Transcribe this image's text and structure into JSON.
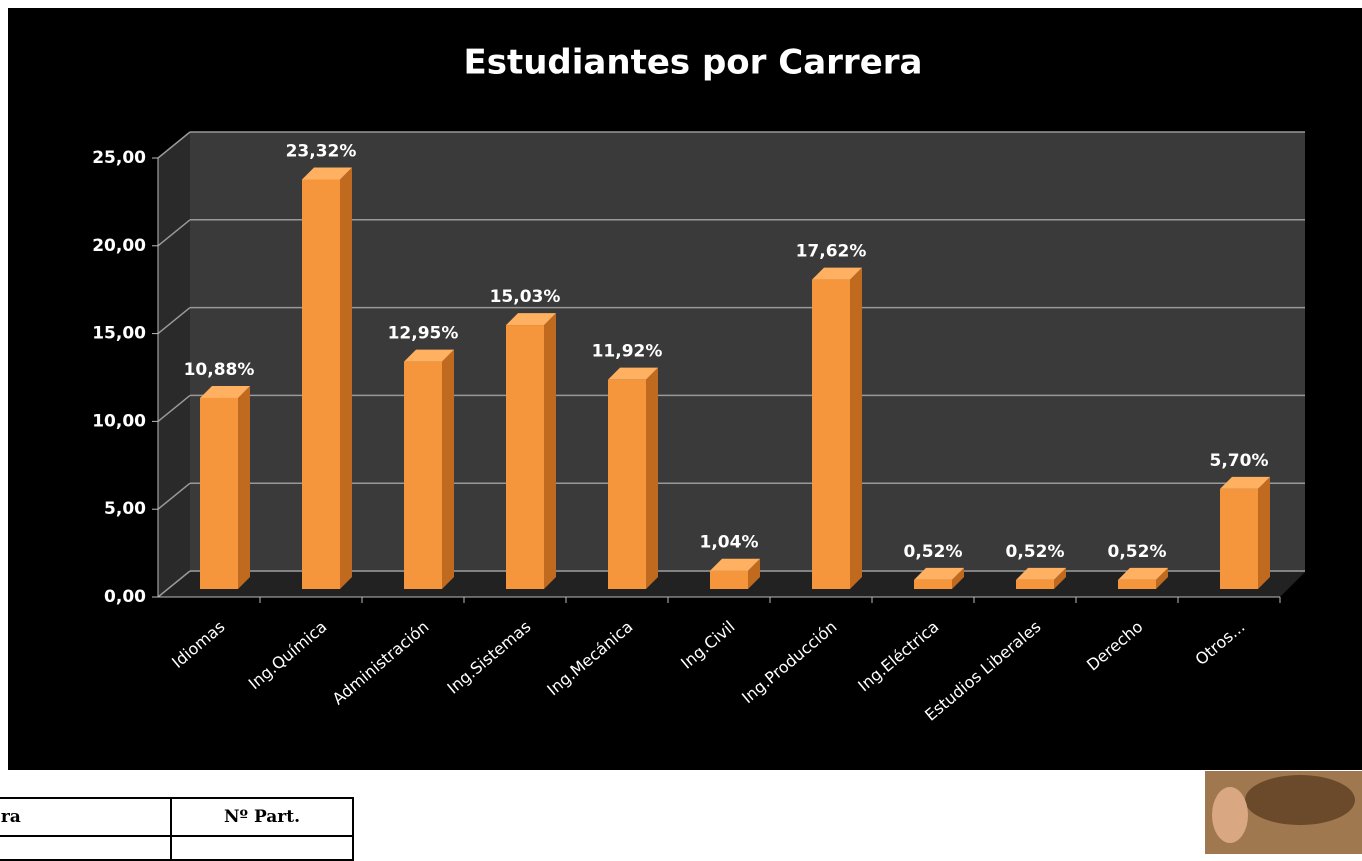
{
  "chart_data": {
    "type": "bar3d",
    "title": "Estudiantes por Carrera",
    "categories": [
      "Idiomas",
      "Ing.Química",
      "Administración",
      "Ing.Sistemas",
      "Ing.Mecánica",
      "Ing.Civil",
      "Ing.Producción",
      "Ing.Eléctrica",
      "Estudios Liberales",
      "Derecho",
      "Otros..."
    ],
    "values": [
      10.88,
      23.32,
      12.95,
      15.03,
      11.92,
      1.04,
      17.62,
      0.52,
      0.52,
      0.52,
      5.7
    ],
    "value_labels": [
      "10,88%",
      "23,32%",
      "12,95%",
      "15,03%",
      "11,92%",
      "1,04%",
      "17,62%",
      "0,52%",
      "0,52%",
      "0,52%",
      "5,70%"
    ],
    "color": "#f5963c",
    "ylim": [
      0,
      25
    ],
    "yticks": [
      {
        "value": 0,
        "label": "0,00"
      },
      {
        "value": 5,
        "label": "5,00"
      },
      {
        "value": 10,
        "label": "10,00"
      },
      {
        "value": 15,
        "label": "15,00"
      },
      {
        "value": 20,
        "label": "20,00"
      },
      {
        "value": 25,
        "label": "25,00"
      }
    ],
    "grid": true
  },
  "table": {
    "headers": [
      "era",
      "Nº Part."
    ]
  }
}
